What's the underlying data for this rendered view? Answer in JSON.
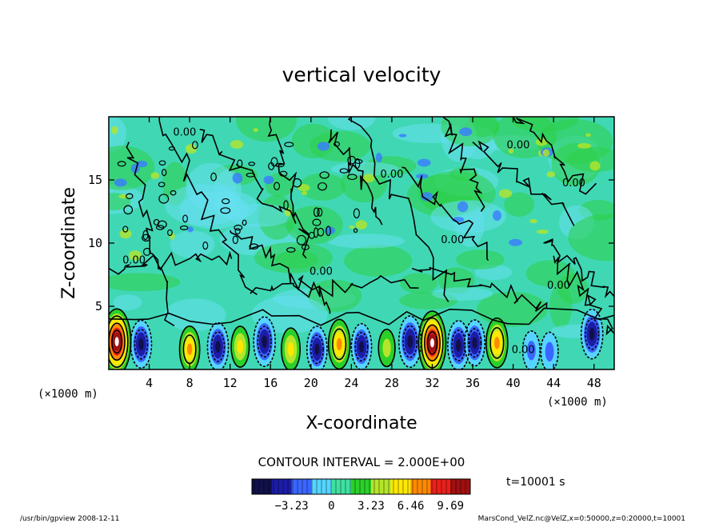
{
  "chart_data": {
    "type": "heatmap",
    "title": "vertical velocity",
    "xlabel": "X-coordinate",
    "ylabel": "Z-coordinate",
    "x_unit_left": "(×1000 m)",
    "x_unit_right": "(×1000 m)",
    "xlim": [
      0,
      50
    ],
    "ylim": [
      0,
      20
    ],
    "x_ticks": [
      4,
      8,
      12,
      16,
      20,
      24,
      28,
      32,
      36,
      40,
      44,
      48
    ],
    "y_ticks": [
      5,
      10,
      15
    ],
    "contour_interval_text": "CONTOUR INTERVAL = 2.000E+00",
    "contour_label": "0.00",
    "time_text": "t=10001 s",
    "colorbar": {
      "ticks": [
        -3.23,
        0,
        3.23,
        6.46,
        9.69
      ],
      "tick_labels": [
        "−3.23",
        "0",
        "3.23",
        "6.46",
        "9.69"
      ],
      "range": [
        -6.46,
        11.3
      ],
      "colors": [
        "#10104a",
        "#1c1ca8",
        "#3a66ff",
        "#55d4ff",
        "#40e0a0",
        "#2ad02a",
        "#b4e52a",
        "#ffe800",
        "#ff8a00",
        "#e8201a",
        "#a01010"
      ]
    },
    "cells": [
      {
        "x": 0.8,
        "z": 2.2,
        "w": 9.5
      },
      {
        "x": 3.2,
        "z": 2.0,
        "w": -4.5
      },
      {
        "x": 8.0,
        "z": 1.6,
        "w": 4.0
      },
      {
        "x": 10.8,
        "z": 1.8,
        "w": -4.5
      },
      {
        "x": 13.0,
        "z": 1.8,
        "w": 2.5
      },
      {
        "x": 15.4,
        "z": 2.2,
        "w": -5.0
      },
      {
        "x": 18.0,
        "z": 1.6,
        "w": 3.0
      },
      {
        "x": 20.6,
        "z": 1.6,
        "w": -4.0
      },
      {
        "x": 22.8,
        "z": 2.0,
        "w": 5.0
      },
      {
        "x": 25.0,
        "z": 1.8,
        "w": -4.0
      },
      {
        "x": 27.5,
        "z": 1.7,
        "w": 1.5
      },
      {
        "x": 29.8,
        "z": 2.2,
        "w": -5.5
      },
      {
        "x": 32.0,
        "z": 2.1,
        "w": 9.0
      },
      {
        "x": 34.6,
        "z": 1.9,
        "w": -5.0
      },
      {
        "x": 36.2,
        "z": 2.1,
        "w": -4.0
      },
      {
        "x": 38.4,
        "z": 2.1,
        "w": 5.0
      },
      {
        "x": 41.8,
        "z": 1.5,
        "w": -2.0
      },
      {
        "x": 43.6,
        "z": 1.4,
        "w": -2.0
      },
      {
        "x": 47.8,
        "z": 2.8,
        "w": -5.0
      }
    ]
  },
  "footer": {
    "left": "/usr/bin/gpview   2008-12-11",
    "right": "MarsCond_VelZ.nc@VelZ,x=0:50000,z=0:20000,t=10001"
  }
}
